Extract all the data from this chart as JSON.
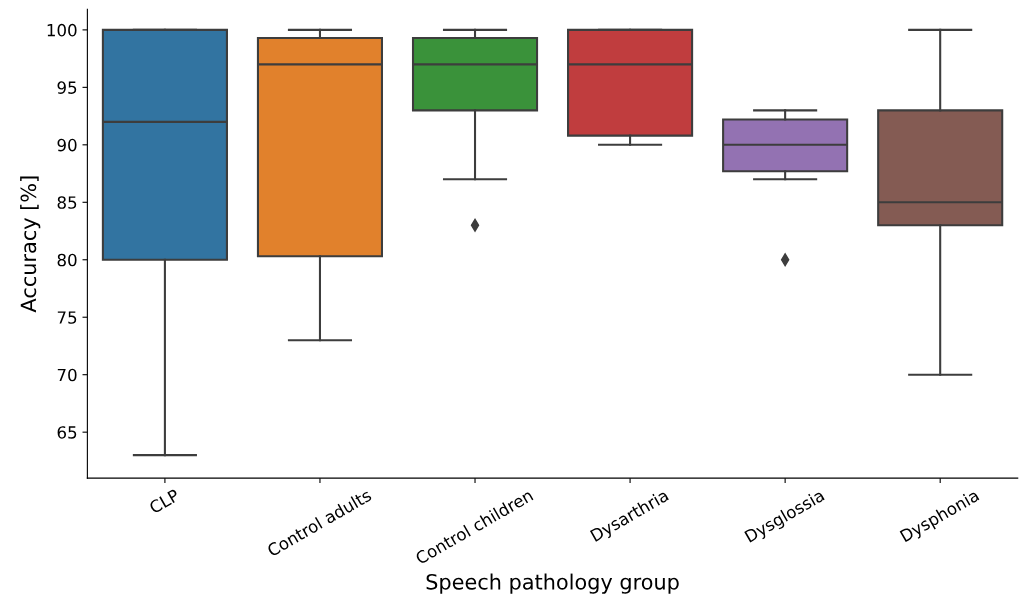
{
  "chart_data": {
    "type": "box",
    "xlabel": "Speech pathology group",
    "ylabel": "Accuracy [%]",
    "categories": [
      "CLP",
      "Control adults",
      "Control children",
      "Dysarthria",
      "Dysglossia",
      "Dysphonia"
    ],
    "colors": [
      "#3274a1",
      "#e1812c",
      "#3a923a",
      "#c03d3e",
      "#9372b2",
      "#845b53"
    ],
    "boxes": [
      {
        "low": 63,
        "q1": 80,
        "median": 92,
        "q3": 100,
        "high": 100
      },
      {
        "low": 73,
        "q1": 80.3,
        "median": 97,
        "q3": 99.3,
        "high": 100
      },
      {
        "low": 87,
        "q1": 93,
        "median": 97,
        "q3": 99.3,
        "high": 100,
        "outliers": [
          83
        ]
      },
      {
        "low": 90,
        "q1": 90.8,
        "median": 97,
        "q3": 100,
        "high": 100
      },
      {
        "low": 87,
        "q1": 87.7,
        "median": 90,
        "q3": 92.2,
        "high": 93,
        "outliers": [
          80
        ]
      },
      {
        "low": 70,
        "q1": 83,
        "median": 85,
        "q3": 93,
        "high": 100
      }
    ],
    "ylim": [
      61,
      101.8
    ],
    "yticks": [
      65,
      70,
      75,
      80,
      85,
      90,
      95,
      100
    ],
    "grid": false,
    "legend": false
  }
}
